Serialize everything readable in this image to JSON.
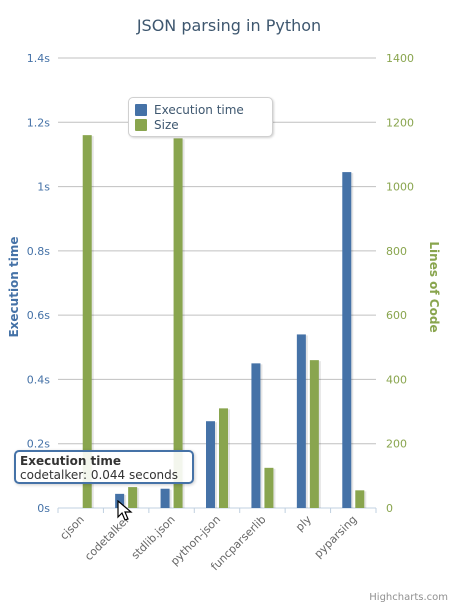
{
  "chart_data": {
    "type": "bar",
    "title": "JSON parsing in Python",
    "categories": [
      "cjson",
      "codetalker",
      "stdlib.json",
      "python-json",
      "funcparserlib",
      "ply",
      "pyparsing"
    ],
    "series": [
      {
        "name": "Execution time",
        "axis": "left",
        "color": "#4572a7",
        "values": [
          0,
          0.044,
          0.06,
          0.27,
          0.45,
          0.54,
          1.045
        ]
      },
      {
        "name": "Size",
        "axis": "right",
        "color": "#89a54e",
        "values": [
          1160,
          65,
          1150,
          310,
          125,
          460,
          55
        ]
      }
    ],
    "yaxis_left": {
      "title": "Execution time",
      "min": 0,
      "max": 1.4,
      "ticks": [
        "0s",
        "0.2s",
        "0.4s",
        "0.6s",
        "0.8s",
        "1s",
        "1.2s",
        "1.4s"
      ]
    },
    "yaxis_right": {
      "title": "Lines of Code",
      "min": 0,
      "max": 1400,
      "ticks": [
        "0",
        "200",
        "400",
        "600",
        "800",
        "1000",
        "1200",
        "1400"
      ]
    },
    "grid": true,
    "legend_position": "top-left"
  },
  "tooltip": {
    "title": "Execution time",
    "body": "codetalker: 0.044 seconds"
  },
  "credit": "Highcharts.com"
}
